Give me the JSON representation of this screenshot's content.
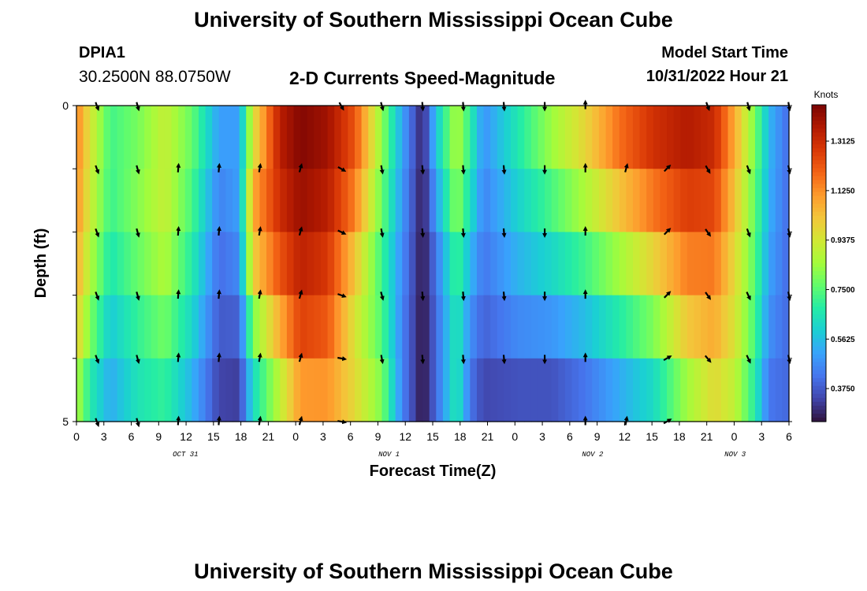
{
  "page": {
    "title": "University of Southern Mississippi Ocean Cube",
    "bottom_title": "University of Southern Mississippi Ocean Cube",
    "station_id": "DPIA1",
    "coords": "30.2500N  88.0750W",
    "chart_title": "2-D Currents Speed-Magnitude",
    "model_label": "Model Start Time",
    "model_time": "10/31/2022 Hour 21"
  },
  "colors": {
    "colormap": [
      "#30123b",
      "#4145ab",
      "#4675ed",
      "#39a2fc",
      "#1bcfd4",
      "#24eca6",
      "#61fc6c",
      "#a4fc3b",
      "#d1e834",
      "#f3c63a",
      "#fe9b2d",
      "#f36315",
      "#d93806",
      "#b11901",
      "#7a0403"
    ]
  },
  "chart_data": {
    "type": "heatmap",
    "title": "2-D Currents Speed-Magnitude",
    "xlabel": "Forecast Time(Z)",
    "ylabel": "Depth (ft)",
    "x_tick_labels": [
      "0",
      "3",
      "6",
      "9",
      "12",
      "15",
      "18",
      "21",
      "0",
      "3",
      "6",
      "9",
      "12",
      "15",
      "18",
      "21",
      "0",
      "3",
      "6",
      "9",
      "12",
      "15",
      "18",
      "21",
      "0",
      "3",
      "6"
    ],
    "day_labels": [
      {
        "text": "OCT 31",
        "x_hours": 12
      },
      {
        "text": "NOV 1",
        "x_hours": 42
      },
      {
        "text": "NOV 2",
        "x_hours": 72
      },
      {
        "text": "NOV 3",
        "x_hours": 93
      }
    ],
    "xlim_hours": [
      0,
      105
    ],
    "y_tick_labels": [
      "0",
      "5"
    ],
    "ylim_ft": [
      0,
      5
    ],
    "depth_levels": 5,
    "colorbar": {
      "title": "Knots",
      "min": 0.25,
      "max": 1.45,
      "tick_values": [
        1.3125,
        1.125,
        0.9375,
        0.75,
        0.5625,
        0.375
      ],
      "tick_labels": [
        "1.3125",
        "1.1250",
        "0.9375",
        "0.7500",
        "0.5625",
        "0.3750"
      ]
    },
    "speed_keypoints": [
      {
        "t": 0,
        "s": [
          1.15,
          1.15,
          1.1,
          1.05,
          0.95,
          0.8
        ]
      },
      {
        "t": 2,
        "s": [
          0.95,
          0.95,
          0.9,
          0.85,
          0.75,
          0.6
        ]
      },
      {
        "t": 5,
        "s": [
          0.72,
          0.72,
          0.7,
          0.62,
          0.55,
          0.5
        ]
      },
      {
        "t": 9,
        "s": [
          0.78,
          0.8,
          0.82,
          0.72,
          0.68,
          0.62
        ]
      },
      {
        "t": 13,
        "s": [
          0.92,
          0.9,
          0.92,
          0.82,
          0.75,
          0.65
        ]
      },
      {
        "t": 17,
        "s": [
          0.78,
          0.76,
          0.7,
          0.65,
          0.58,
          0.5
        ]
      },
      {
        "t": 21,
        "s": [
          0.52,
          0.48,
          0.42,
          0.4,
          0.35,
          0.32
        ]
      },
      {
        "t": 24,
        "s": [
          0.5,
          0.5,
          0.5,
          0.42,
          0.35,
          0.3
        ]
      },
      {
        "t": 26,
        "s": [
          0.85,
          1.05,
          1.1,
          0.9,
          0.7,
          0.55
        ]
      },
      {
        "t": 30,
        "s": [
          1.38,
          1.32,
          1.3,
          1.15,
          1.0,
          0.8
        ]
      },
      {
        "t": 33,
        "s": [
          1.45,
          1.42,
          1.38,
          1.3,
          1.22,
          1.0
        ]
      },
      {
        "t": 37,
        "s": [
          1.4,
          1.38,
          1.32,
          1.25,
          1.18,
          1.05
        ]
      },
      {
        "t": 41,
        "s": [
          1.25,
          1.2,
          1.1,
          0.95,
          0.95,
          1.0
        ]
      },
      {
        "t": 45,
        "s": [
          0.85,
          0.8,
          0.75,
          0.68,
          0.8,
          0.8
        ]
      },
      {
        "t": 48,
        "s": [
          0.52,
          0.5,
          0.48,
          0.45,
          0.45,
          0.45
        ]
      },
      {
        "t": 51,
        "s": [
          0.28,
          0.26,
          0.26,
          0.25,
          0.25,
          0.25
        ]
      },
      {
        "t": 53,
        "s": [
          0.6,
          0.55,
          0.45,
          0.4,
          0.4,
          0.4
        ]
      },
      {
        "t": 56,
        "s": [
          0.9,
          0.85,
          0.8,
          0.65,
          0.7,
          0.65
        ]
      },
      {
        "t": 58,
        "s": [
          0.7,
          0.68,
          0.6,
          0.5,
          0.45,
          0.4
        ]
      },
      {
        "t": 60,
        "s": [
          0.5,
          0.45,
          0.45,
          0.4,
          0.38,
          0.3
        ]
      },
      {
        "t": 65,
        "s": [
          0.7,
          0.62,
          0.58,
          0.5,
          0.42,
          0.3
        ]
      },
      {
        "t": 70,
        "s": [
          0.9,
          0.78,
          0.68,
          0.55,
          0.42,
          0.3
        ]
      },
      {
        "t": 75,
        "s": [
          1.05,
          0.92,
          0.82,
          0.62,
          0.5,
          0.35
        ]
      },
      {
        "t": 80,
        "s": [
          1.25,
          1.1,
          0.95,
          0.75,
          0.6,
          0.45
        ]
      },
      {
        "t": 85,
        "s": [
          1.35,
          1.25,
          1.08,
          0.9,
          0.7,
          0.55
        ]
      },
      {
        "t": 90,
        "s": [
          1.4,
          1.32,
          1.22,
          1.08,
          0.95,
          0.75
        ]
      },
      {
        "t": 94,
        "s": [
          1.35,
          1.28,
          1.22,
          1.1,
          1.05,
          0.9
        ]
      },
      {
        "t": 97,
        "s": [
          1.1,
          1.05,
          1.0,
          0.95,
          0.95,
          0.85
        ]
      },
      {
        "t": 100,
        "s": [
          0.8,
          0.78,
          0.75,
          0.75,
          0.7,
          0.65
        ]
      },
      {
        "t": 102,
        "s": [
          0.55,
          0.55,
          0.52,
          0.5,
          0.45,
          0.4
        ]
      },
      {
        "t": 105,
        "s": [
          0.4,
          0.4,
          0.4,
          0.4,
          0.4,
          0.4
        ]
      }
    ],
    "vectors": {
      "times": [
        0,
        6,
        12,
        18,
        24,
        30,
        36,
        42,
        48,
        54,
        60,
        66,
        72,
        78,
        84,
        90,
        96,
        102
      ],
      "depth_rows": [
        0,
        1,
        2,
        3,
        4,
        5
      ],
      "angles_deg": [
        [
          160,
          160,
          160,
          160,
          160,
          160
        ],
        [
          165,
          165,
          165,
          165,
          165,
          165
        ],
        [
          null,
          5,
          5,
          5,
          5,
          5
        ],
        [
          null,
          5,
          5,
          5,
          5,
          5
        ],
        [
          null,
          10,
          10,
          10,
          10,
          10
        ],
        [
          null,
          15,
          15,
          15,
          15,
          15
        ],
        [
          150,
          120,
          115,
          110,
          100,
          100
        ],
        [
          165,
          170,
          170,
          165,
          170,
          null
        ],
        [
          175,
          175,
          175,
          175,
          175,
          null
        ],
        [
          175,
          175,
          175,
          175,
          175,
          null
        ],
        [
          175,
          175,
          175,
          175,
          175,
          null
        ],
        [
          180,
          180,
          180,
          180,
          180,
          null
        ],
        [
          0,
          0,
          0,
          0,
          0,
          0
        ],
        [
          null,
          15,
          null,
          null,
          null,
          10
        ],
        [
          null,
          45,
          45,
          45,
          60,
          60
        ],
        [
          160,
          150,
          145,
          145,
          140,
          null
        ],
        [
          165,
          160,
          160,
          155,
          155,
          null
        ],
        [
          170,
          170,
          170,
          170,
          170,
          null
        ]
      ]
    }
  }
}
